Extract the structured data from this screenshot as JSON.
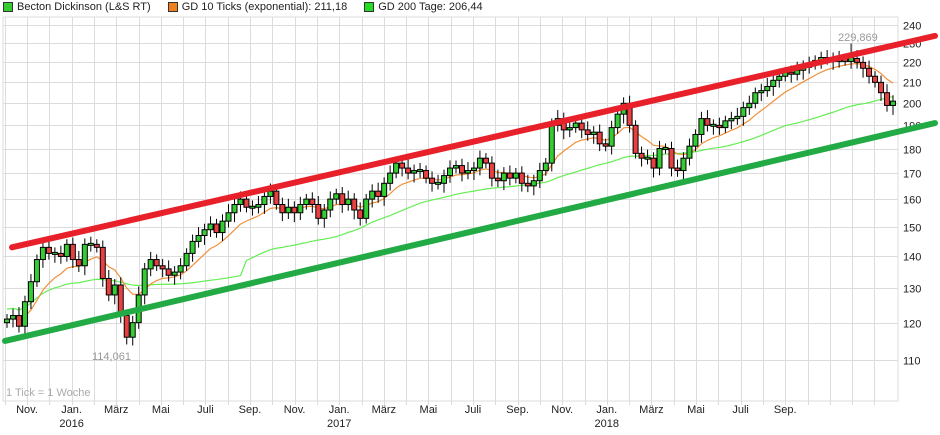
{
  "legend": [
    {
      "label": "Becton Dickinson (L&S RT)",
      "color": "#33cc33"
    },
    {
      "label": "GD 10 Ticks (exponential): 211,18",
      "color": "#f07f1e"
    },
    {
      "label": "GD 200 Tage: 206,44",
      "color": "#22dd22"
    }
  ],
  "note": "1 Tick = 1 Woche",
  "annotations": {
    "low": "114,061",
    "high": "229,869"
  },
  "colors": {
    "up": "#33cc33",
    "down": "#e84040",
    "resistance": "#e8202a",
    "support": "#22aa44",
    "ema10": "#f0903a",
    "sma200": "#66ee55",
    "grid": "#dcdcdc"
  },
  "chart_data": {
    "type": "candlestick",
    "title": "Becton Dickinson (L&S RT)",
    "xlabel": "",
    "ylabel": "",
    "yscale": "log",
    "ylim": [
      104,
      246
    ],
    "y_ticks": [
      110,
      120,
      130,
      140,
      150,
      160,
      170,
      180,
      190,
      200,
      210,
      220,
      230,
      240
    ],
    "x_ticks": [
      {
        "label": "Nov.",
        "year": ""
      },
      {
        "label": "Jan.",
        "year": "2016"
      },
      {
        "label": "März",
        "year": ""
      },
      {
        "label": "Mai",
        "year": ""
      },
      {
        "label": "Juli",
        "year": ""
      },
      {
        "label": "Sep.",
        "year": ""
      },
      {
        "label": "Nov.",
        "year": ""
      },
      {
        "label": "Jan.",
        "year": "2017"
      },
      {
        "label": "März",
        "year": ""
      },
      {
        "label": "Mai",
        "year": ""
      },
      {
        "label": "Juli",
        "year": ""
      },
      {
        "label": "Sep.",
        "year": ""
      },
      {
        "label": "Nov.",
        "year": ""
      },
      {
        "label": "Jan.",
        "year": "2018"
      },
      {
        "label": "März",
        "year": ""
      },
      {
        "label": "Mai",
        "year": ""
      },
      {
        "label": "Juli",
        "year": ""
      },
      {
        "label": "Sep.",
        "year": ""
      }
    ],
    "grid": true,
    "legend_position": "top",
    "series": [
      {
        "name": "Becton Dickinson (L&S RT)",
        "type": "ohlc_weekly",
        "close": [
          121,
          122,
          119,
          126,
          132,
          139,
          143,
          141,
          141,
          140,
          144,
          139,
          137,
          144,
          144,
          143,
          133,
          128,
          131,
          122,
          116,
          120,
          128,
          136,
          139,
          137,
          136,
          134,
          135,
          137,
          141,
          145,
          147,
          149,
          151,
          148,
          152,
          155,
          158,
          160,
          157,
          157,
          158,
          161,
          163,
          158,
          155,
          157,
          155,
          158,
          160,
          158,
          153,
          156,
          160,
          162,
          158,
          160,
          156,
          153,
          160,
          163,
          161,
          166,
          170,
          174,
          172,
          170,
          171,
          171,
          168,
          166,
          166,
          169,
          172,
          173,
          170,
          171,
          172,
          176,
          174,
          168,
          167,
          170,
          168,
          170,
          166,
          165,
          167,
          171,
          174,
          190,
          193,
          188,
          189,
          191,
          188,
          186,
          187,
          182,
          181,
          189,
          195,
          200,
          190,
          178,
          176,
          176,
          172,
          180,
          180,
          172,
          171,
          176,
          181,
          186,
          193,
          190,
          190,
          189,
          192,
          193,
          194,
          198,
          200,
          205,
          206,
          208,
          211,
          213,
          215,
          214,
          216,
          218,
          219,
          221,
          222,
          222,
          221,
          222,
          221,
          222,
          220,
          217,
          213,
          210,
          205,
          199,
          201
        ],
        "open": [
          120,
          121,
          122,
          119,
          126,
          132,
          139,
          143,
          141,
          141,
          140,
          144,
          139,
          137,
          144,
          144,
          143,
          133,
          128,
          131,
          122,
          116,
          120,
          128,
          136,
          139,
          137,
          136,
          134,
          135,
          137,
          141,
          145,
          147,
          149,
          151,
          148,
          152,
          155,
          158,
          160,
          157,
          157,
          158,
          161,
          163,
          158,
          155,
          157,
          155,
          158,
          160,
          158,
          153,
          156,
          160,
          162,
          158,
          160,
          156,
          153,
          160,
          163,
          161,
          166,
          170,
          174,
          172,
          170,
          171,
          171,
          168,
          166,
          166,
          169,
          172,
          173,
          170,
          171,
          172,
          176,
          174,
          168,
          167,
          170,
          168,
          170,
          166,
          165,
          167,
          171,
          174,
          190,
          193,
          188,
          189,
          191,
          188,
          186,
          187,
          182,
          181,
          189,
          195,
          200,
          190,
          178,
          176,
          176,
          172,
          180,
          180,
          172,
          171,
          176,
          181,
          186,
          193,
          190,
          190,
          189,
          192,
          193,
          194,
          198,
          200,
          205,
          206,
          208,
          211,
          213,
          215,
          214,
          216,
          218,
          219,
          221,
          222,
          222,
          221,
          222,
          221,
          222,
          220,
          217,
          213,
          210,
          205,
          199
        ]
      },
      {
        "name": "GD 10 Ticks (exponential)",
        "last": 211.18
      },
      {
        "name": "GD 200 Tage",
        "last": 206.44
      },
      {
        "name": "Resistance trendline",
        "points": [
          [
            12,
            143
          ],
          [
            935,
            234
          ]
        ]
      },
      {
        "name": "Support trendline",
        "points": [
          [
            5,
            115
          ],
          [
            935,
            191
          ]
        ]
      }
    ],
    "annotations": [
      {
        "text": "114,061",
        "type": "low"
      },
      {
        "text": "229,869",
        "type": "high"
      }
    ]
  }
}
